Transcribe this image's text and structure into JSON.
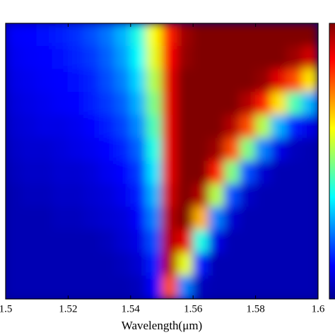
{
  "chart_data": {
    "type": "heatmap",
    "xlabel": "Wavelength(μm)",
    "xlim": [
      1.5,
      1.6
    ],
    "xticks": [
      1.5,
      1.52,
      1.54,
      1.56,
      1.58,
      1.6
    ],
    "zlim": [
      0,
      1
    ],
    "x": [
      1.5025,
      1.5075,
      1.5125,
      1.5175,
      1.5225,
      1.5275,
      1.5325,
      1.5375,
      1.5425,
      1.5475,
      1.5525,
      1.5575,
      1.5625,
      1.5675,
      1.5725,
      1.5775,
      1.5825,
      1.5875,
      1.5925,
      1.5975
    ],
    "z": [
      [
        0.12,
        0.13,
        0.14,
        0.15,
        0.17,
        0.2,
        0.24,
        0.3,
        0.4,
        0.62,
        0.85,
        0.97,
        1,
        1,
        1,
        1,
        1,
        1,
        1,
        1
      ],
      [
        0.11,
        0.12,
        0.13,
        0.14,
        0.16,
        0.18,
        0.22,
        0.28,
        0.38,
        0.6,
        0.88,
        0.98,
        1,
        1,
        1,
        1,
        1,
        1,
        0.97,
        0.92
      ],
      [
        0.1,
        0.11,
        0.12,
        0.13,
        0.14,
        0.16,
        0.2,
        0.25,
        0.34,
        0.55,
        0.9,
        1,
        1,
        1,
        1,
        1,
        0.98,
        0.9,
        0.8,
        0.65
      ],
      [
        0.09,
        0.1,
        0.11,
        0.12,
        0.13,
        0.15,
        0.18,
        0.22,
        0.3,
        0.5,
        0.9,
        1,
        1,
        1,
        1,
        0.95,
        0.85,
        0.65,
        0.45,
        0.3
      ],
      [
        0.08,
        0.09,
        0.1,
        0.1,
        0.11,
        0.13,
        0.15,
        0.19,
        0.26,
        0.45,
        0.9,
        1,
        1,
        1,
        0.95,
        0.8,
        0.55,
        0.3,
        0.15,
        0.1
      ],
      [
        0.07,
        0.08,
        0.08,
        0.09,
        0.1,
        0.11,
        0.13,
        0.16,
        0.22,
        0.4,
        0.9,
        1,
        1,
        0.97,
        0.8,
        0.5,
        0.25,
        0.1,
        0.06,
        0.05
      ],
      [
        0.06,
        0.07,
        0.07,
        0.08,
        0.08,
        0.09,
        0.11,
        0.13,
        0.18,
        0.35,
        0.9,
        1,
        1,
        0.85,
        0.5,
        0.2,
        0.08,
        0.05,
        0.05,
        0.05
      ],
      [
        0.05,
        0.06,
        0.06,
        0.07,
        0.07,
        0.08,
        0.09,
        0.11,
        0.15,
        0.3,
        0.92,
        1,
        0.95,
        0.55,
        0.2,
        0.07,
        0.05,
        0.05,
        0.05,
        0.05
      ],
      [
        0.05,
        0.05,
        0.05,
        0.06,
        0.06,
        0.07,
        0.08,
        0.09,
        0.12,
        0.25,
        0.95,
        1,
        0.7,
        0.25,
        0.08,
        0.05,
        0.05,
        0.05,
        0.05,
        0.05
      ],
      [
        0.05,
        0.05,
        0.05,
        0.05,
        0.05,
        0.05,
        0.06,
        0.08,
        0.1,
        0.2,
        0.95,
        0.9,
        0.4,
        0.1,
        0.05,
        0.05,
        0.05,
        0.05,
        0.05,
        0.05
      ],
      [
        0.05,
        0.05,
        0.05,
        0.05,
        0.05,
        0.05,
        0.05,
        0.06,
        0.08,
        0.15,
        0.95,
        0.6,
        0.15,
        0.05,
        0.05,
        0.05,
        0.05,
        0.05,
        0.05,
        0.05
      ],
      [
        0.05,
        0.05,
        0.05,
        0.05,
        0.05,
        0.05,
        0.05,
        0.05,
        0.06,
        0.12,
        0.8,
        0.25,
        0.06,
        0.05,
        0.05,
        0.05,
        0.05,
        0.05,
        0.05,
        0.05
      ]
    ]
  }
}
